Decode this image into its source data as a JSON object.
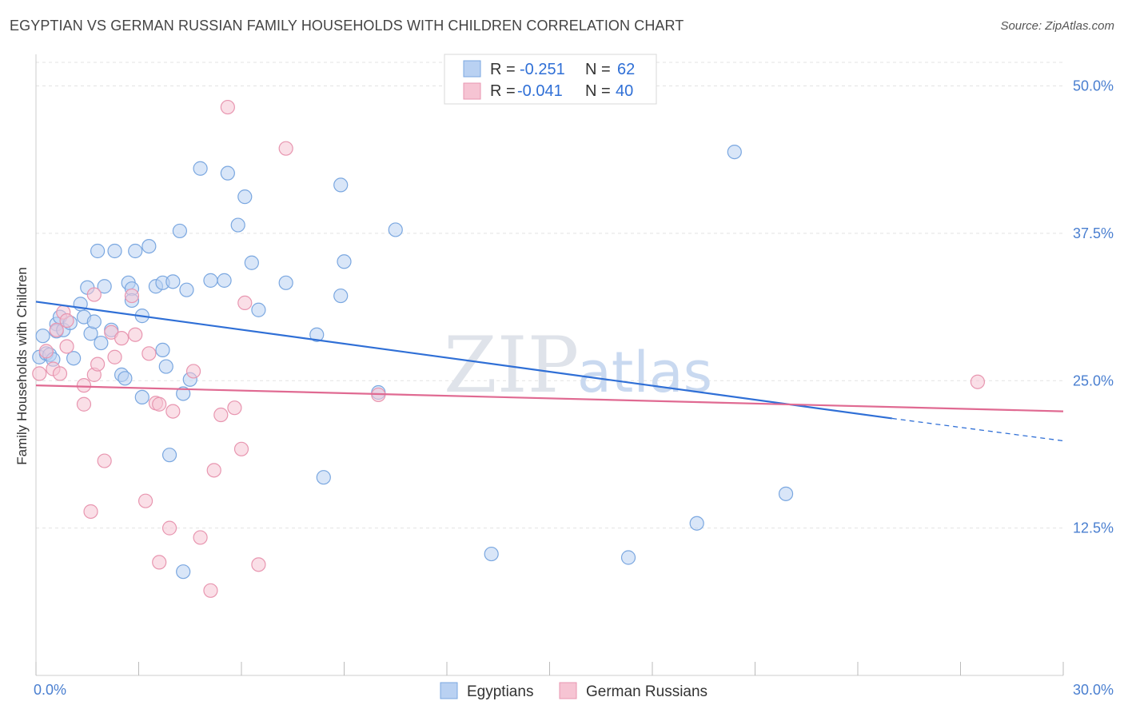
{
  "header": {
    "title": "EGYPTIAN VS GERMAN RUSSIAN FAMILY HOUSEHOLDS WITH CHILDREN CORRELATION CHART",
    "source": "Source: ZipAtlas.com"
  },
  "watermark": {
    "zip": "ZIP",
    "atlas": "atlas"
  },
  "legend": {
    "rows": [
      {
        "r_label": "R = ",
        "r_value": "-0.251",
        "n_label": "N = ",
        "n_value": "62"
      },
      {
        "r_label": "R = ",
        "r_value": "-0.041",
        "n_label": "N = ",
        "n_value": "40"
      }
    ]
  },
  "chart_data": {
    "type": "scatter",
    "title": "EGYPTIAN VS GERMAN RUSSIAN FAMILY HOUSEHOLDS WITH CHILDREN CORRELATION CHART",
    "xlabel": "",
    "ylabel": "Family Households with Children",
    "xlim": [
      0,
      30
    ],
    "ylim": [
      0,
      52
    ],
    "x_tick_labels": [
      {
        "value": 0,
        "label": "0.0%"
      },
      {
        "value": 30,
        "label": "30.0%"
      }
    ],
    "y_tick_labels": [
      {
        "value": 12.5,
        "label": "12.5%"
      },
      {
        "value": 25,
        "label": "25.0%"
      },
      {
        "value": 37.5,
        "label": "37.5%"
      },
      {
        "value": 50,
        "label": "50.0%"
      }
    ],
    "grid": true,
    "legend_position": "top-center",
    "series": [
      {
        "name": "Egyptians",
        "color": "#7aa7e0",
        "fill": "#b9d1f2",
        "trend": {
          "x": [
            0,
            25
          ],
          "y": [
            31.7,
            21.8
          ],
          "dashed_to": [
            30,
            19.9
          ]
        },
        "points": [
          [
            0.1,
            27.0
          ],
          [
            0.2,
            28.8
          ],
          [
            0.3,
            27.3
          ],
          [
            0.4,
            27.2
          ],
          [
            0.5,
            26.8
          ],
          [
            0.6,
            29.8
          ],
          [
            0.6,
            29.2
          ],
          [
            0.7,
            30.4
          ],
          [
            0.8,
            29.3
          ],
          [
            1.0,
            29.9
          ],
          [
            1.1,
            26.9
          ],
          [
            1.3,
            31.5
          ],
          [
            1.4,
            30.4
          ],
          [
            1.5,
            32.9
          ],
          [
            1.6,
            29.0
          ],
          [
            1.7,
            30.0
          ],
          [
            1.8,
            36.0
          ],
          [
            1.9,
            28.2
          ],
          [
            2.0,
            33.0
          ],
          [
            2.2,
            29.3
          ],
          [
            2.3,
            36.0
          ],
          [
            2.5,
            25.5
          ],
          [
            2.6,
            25.2
          ],
          [
            2.7,
            33.3
          ],
          [
            2.8,
            32.8
          ],
          [
            2.8,
            31.8
          ],
          [
            2.9,
            36.0
          ],
          [
            3.1,
            23.6
          ],
          [
            3.1,
            30.5
          ],
          [
            3.3,
            36.4
          ],
          [
            3.5,
            33.0
          ],
          [
            3.7,
            33.3
          ],
          [
            3.7,
            27.6
          ],
          [
            3.8,
            26.2
          ],
          [
            3.9,
            18.7
          ],
          [
            4.0,
            33.4
          ],
          [
            4.2,
            37.7
          ],
          [
            4.3,
            8.8
          ],
          [
            4.4,
            32.7
          ],
          [
            4.3,
            23.9
          ],
          [
            4.5,
            25.1
          ],
          [
            4.8,
            43.0
          ],
          [
            5.1,
            33.5
          ],
          [
            5.5,
            33.5
          ],
          [
            5.6,
            42.6
          ],
          [
            5.9,
            38.2
          ],
          [
            6.1,
            40.6
          ],
          [
            6.3,
            35.0
          ],
          [
            6.5,
            31.0
          ],
          [
            7.3,
            33.3
          ],
          [
            8.2,
            28.9
          ],
          [
            8.4,
            16.8
          ],
          [
            8.9,
            41.6
          ],
          [
            8.9,
            32.2
          ],
          [
            9.0,
            35.1
          ],
          [
            10.0,
            24.0
          ],
          [
            10.5,
            37.8
          ],
          [
            13.3,
            10.3
          ],
          [
            17.3,
            10.0
          ],
          [
            19.3,
            12.9
          ],
          [
            20.4,
            44.4
          ],
          [
            21.9,
            15.4
          ]
        ]
      },
      {
        "name": "German Russians",
        "color": "#e896b0",
        "fill": "#f6c4d3",
        "trend": {
          "x": [
            0,
            30
          ],
          "y": [
            24.6,
            22.4
          ]
        },
        "points": [
          [
            0.1,
            25.6
          ],
          [
            0.3,
            27.5
          ],
          [
            0.5,
            26.0
          ],
          [
            0.6,
            29.3
          ],
          [
            0.7,
            25.6
          ],
          [
            0.8,
            30.8
          ],
          [
            0.9,
            30.1
          ],
          [
            0.9,
            27.9
          ],
          [
            1.4,
            24.6
          ],
          [
            1.4,
            23.0
          ],
          [
            1.6,
            13.9
          ],
          [
            1.7,
            25.5
          ],
          [
            1.7,
            32.3
          ],
          [
            1.8,
            26.4
          ],
          [
            2.0,
            18.2
          ],
          [
            2.2,
            29.1
          ],
          [
            2.3,
            27.0
          ],
          [
            2.5,
            28.6
          ],
          [
            2.8,
            32.2
          ],
          [
            2.9,
            28.9
          ],
          [
            3.2,
            14.8
          ],
          [
            3.3,
            27.3
          ],
          [
            3.5,
            23.1
          ],
          [
            3.6,
            23.0
          ],
          [
            3.6,
            9.6
          ],
          [
            3.9,
            12.5
          ],
          [
            4.0,
            22.4
          ],
          [
            4.6,
            25.8
          ],
          [
            4.8,
            11.7
          ],
          [
            5.1,
            7.2
          ],
          [
            5.2,
            17.4
          ],
          [
            5.4,
            22.1
          ],
          [
            5.6,
            48.2
          ],
          [
            5.8,
            22.7
          ],
          [
            6.0,
            19.2
          ],
          [
            6.1,
            31.6
          ],
          [
            6.5,
            9.4
          ],
          [
            7.3,
            44.7
          ],
          [
            10.0,
            23.8
          ],
          [
            27.5,
            24.9
          ]
        ]
      }
    ]
  }
}
